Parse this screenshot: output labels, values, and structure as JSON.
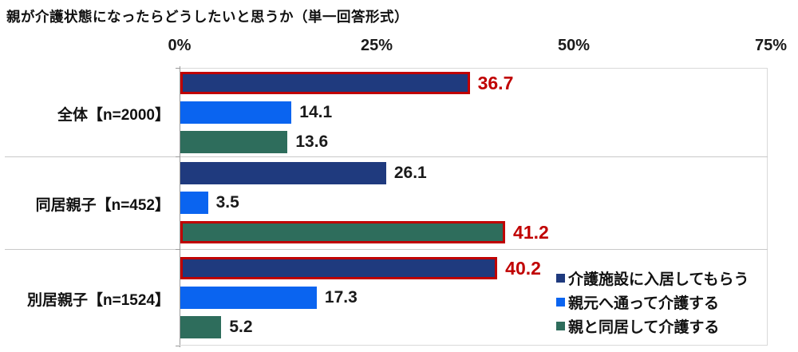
{
  "title": "親が介護状態になったらどうしたいと思うか（単一回答形式）",
  "chart_data": {
    "type": "bar",
    "orientation": "horizontal",
    "title": "親が介護状態になったらどうしたいと思うか（単一回答形式）",
    "categories": [
      "全体【n=2000】",
      "同居親子【n=452】",
      "別居親子【n=1524】"
    ],
    "series": [
      {
        "name": "介護施設に入居してもらう",
        "color": "#1f3a7e",
        "values": [
          36.7,
          26.1,
          40.2
        ]
      },
      {
        "name": "親元へ通って介護する",
        "color": "#0a64f0",
        "values": [
          14.1,
          3.5,
          17.3
        ]
      },
      {
        "name": "親と同居して介護する",
        "color": "#2e6d5c",
        "values": [
          13.6,
          41.2,
          5.2
        ]
      }
    ],
    "highlighted_bars": [
      {
        "category_index": 0,
        "series_index": 0,
        "value": 36.7
      },
      {
        "category_index": 1,
        "series_index": 2,
        "value": 41.2
      },
      {
        "category_index": 2,
        "series_index": 0,
        "value": 40.2
      }
    ],
    "highlight_color": "#c00000",
    "x_ticks": [
      "0%",
      "25%",
      "50%",
      "75%"
    ],
    "x_tick_values": [
      0,
      25,
      50,
      75
    ],
    "xlim": [
      0,
      75
    ],
    "value_labels": "outside-end",
    "legend_position": "inside-bottom-right",
    "grid": "category-dividers-only"
  }
}
